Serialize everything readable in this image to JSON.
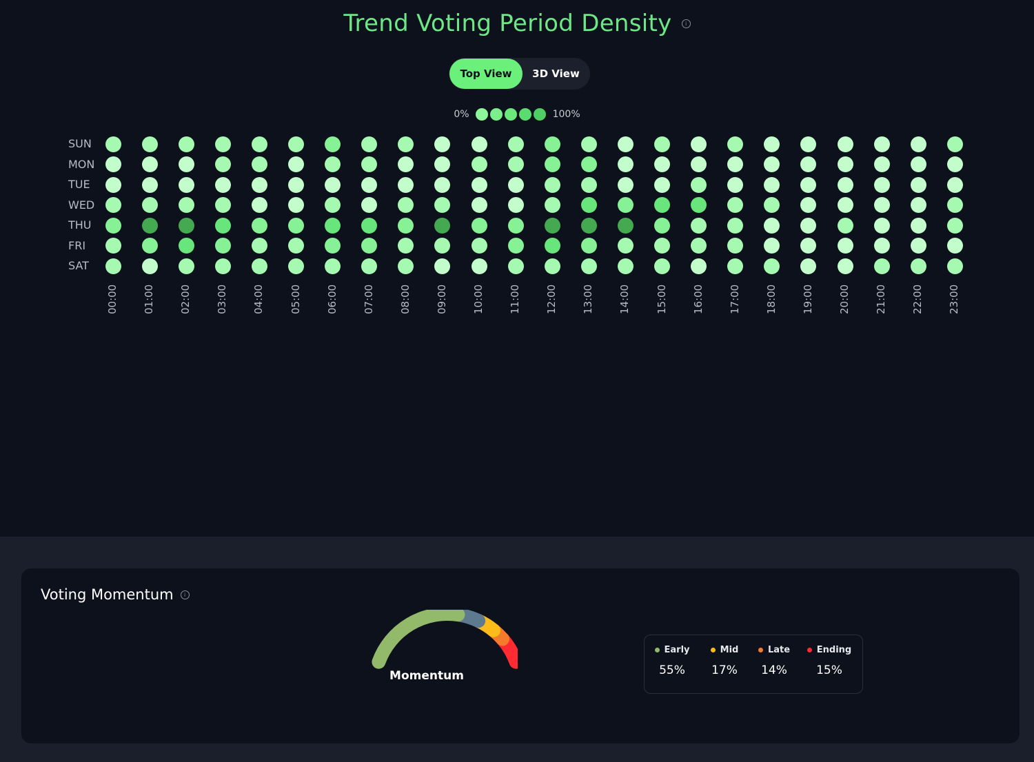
{
  "header": {
    "title": "Trend Voting Period Density",
    "info_icon": "info-circle-icon"
  },
  "view_toggle": {
    "options": [
      "Top View",
      "3D View"
    ],
    "selected": "Top View",
    "accent": "#6cf07c"
  },
  "scale": {
    "min_label": "0%",
    "max_label": "100%",
    "colors": [
      "#8df59a",
      "#7aef8b",
      "#6ae87c",
      "#5bdc6f",
      "#4fcf63"
    ]
  },
  "chart_data": {
    "type": "heatmap",
    "rows": [
      "SUN",
      "MON",
      "TUE",
      "WED",
      "THU",
      "FRI",
      "SAT"
    ],
    "columns": [
      "00:00",
      "01:00",
      "02:00",
      "03:00",
      "04:00",
      "05:00",
      "06:00",
      "07:00",
      "08:00",
      "09:00",
      "10:00",
      "11:00",
      "12:00",
      "13:00",
      "14:00",
      "15:00",
      "16:00",
      "17:00",
      "18:00",
      "19:00",
      "20:00",
      "21:00",
      "22:00",
      "23:00"
    ],
    "values": [
      [
        2,
        2,
        2,
        2,
        2,
        2,
        3,
        2,
        2,
        1,
        1,
        2,
        3,
        2,
        1,
        2,
        1,
        2,
        1,
        1,
        1,
        1,
        1,
        2
      ],
      [
        1,
        1,
        1,
        2,
        2,
        1,
        2,
        2,
        1,
        1,
        2,
        2,
        3,
        3,
        1,
        1,
        1,
        1,
        1,
        1,
        1,
        1,
        1,
        1
      ],
      [
        1,
        1,
        1,
        1,
        1,
        1,
        1,
        1,
        1,
        1,
        1,
        1,
        2,
        2,
        1,
        1,
        2,
        1,
        1,
        1,
        1,
        1,
        1,
        1
      ],
      [
        2,
        2,
        2,
        2,
        1,
        1,
        2,
        1,
        2,
        2,
        1,
        1,
        2,
        4,
        3,
        4,
        4,
        2,
        2,
        1,
        1,
        1,
        1,
        2
      ],
      [
        3,
        6,
        6,
        4,
        3,
        3,
        4,
        4,
        3,
        6,
        3,
        3,
        6,
        6,
        6,
        3,
        2,
        2,
        1,
        1,
        2,
        1,
        1,
        2
      ],
      [
        2,
        3,
        4,
        3,
        2,
        2,
        3,
        3,
        2,
        2,
        2,
        3,
        4,
        3,
        2,
        2,
        2,
        2,
        1,
        1,
        1,
        1,
        1,
        1
      ],
      [
        2,
        1,
        2,
        2,
        2,
        2,
        2,
        2,
        2,
        1,
        1,
        2,
        2,
        2,
        2,
        2,
        1,
        2,
        2,
        1,
        1,
        2,
        2,
        2
      ]
    ],
    "value_range": [
      0,
      6
    ],
    "palette": [
      "#d7ffdc",
      "#c3fdcb",
      "#a6f9b1",
      "#86f295",
      "#69e67b",
      "#55cc66",
      "#45a952"
    ]
  },
  "momentum": {
    "title": "Voting Momentum",
    "info_icon": "info-circle-icon",
    "gauge_label": "Momentum",
    "segments": [
      {
        "name": "Early",
        "value": 55,
        "display": "55%",
        "color": "#93b96a"
      },
      {
        "name": "Mid",
        "value": 17,
        "display": "17%",
        "color": "#fbbc1a"
      },
      {
        "name": "Late",
        "value": 14,
        "display": "14%",
        "color": "#f47a2c"
      },
      {
        "name": "Ending",
        "value": 15,
        "display": "15%",
        "color": "#ff2a32"
      }
    ],
    "gauge_colors": [
      "#93b96a",
      "#5d7a8f",
      "#fbbc1a",
      "#f47a2c",
      "#ff2a32"
    ]
  }
}
